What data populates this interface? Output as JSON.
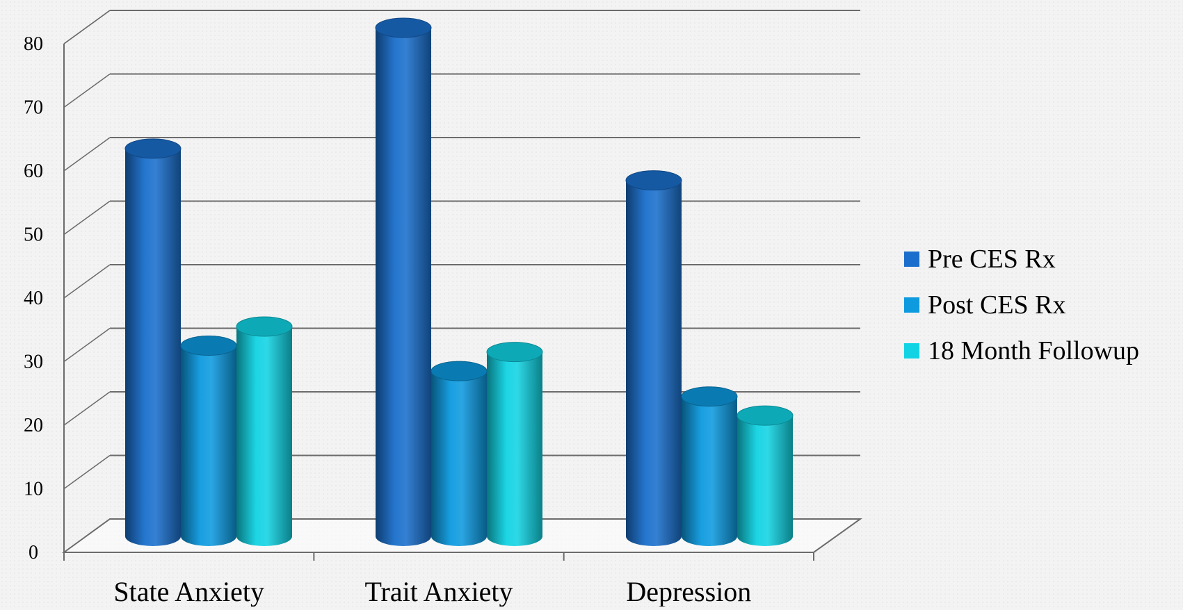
{
  "chart_data": {
    "type": "bar",
    "categories": [
      "State Anxiety",
      "Trait Anxiety",
      "Depression"
    ],
    "series": [
      {
        "name": "Pre CES Rx",
        "values": [
          61,
          80,
          56
        ],
        "color": "#1a6fcc"
      },
      {
        "name": "Post CES Rx",
        "values": [
          30,
          26,
          22
        ],
        "color": "#0d9adf"
      },
      {
        "name": "18 Month Followup",
        "values": [
          33,
          29,
          19
        ],
        "color": "#11d3e3"
      }
    ],
    "yticks": [
      "0",
      "10",
      "20",
      "30",
      "40",
      "50",
      "60",
      "70",
      "80"
    ],
    "ylim": [
      0,
      80
    ],
    "grid": true,
    "legend_position": "right",
    "style": "3d-cylinder"
  }
}
